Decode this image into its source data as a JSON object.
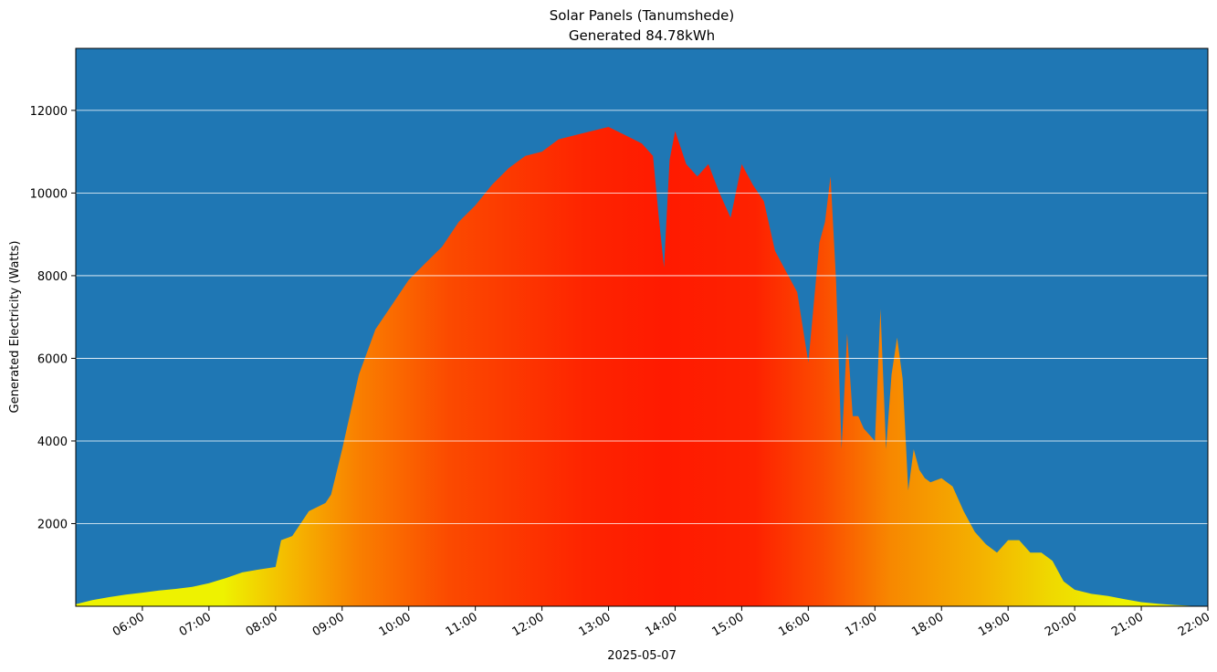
{
  "chart_data": {
    "type": "area",
    "title": "Solar Panels (Tanumshede)",
    "subtitle": "Generated 84.78kWh",
    "xlabel": "2025-05-07",
    "ylabel": "Generated Electricity (Watts)",
    "x_unit": "time of day (2025-05-07)",
    "xlim": [
      "05:00",
      "22:00"
    ],
    "ylim": [
      0,
      13500
    ],
    "x_ticks": [
      "06:00",
      "07:00",
      "08:00",
      "09:00",
      "10:00",
      "11:00",
      "12:00",
      "13:00",
      "14:00",
      "15:00",
      "16:00",
      "17:00",
      "18:00",
      "19:00",
      "20:00",
      "21:00",
      "22:00"
    ],
    "y_ticks": [
      2000,
      4000,
      6000,
      8000,
      10000,
      12000
    ],
    "grid": "horizontal",
    "colors": {
      "background": "#1f77b4",
      "low": "#eef200",
      "mid": "#f7a000",
      "high": "#ff1a00",
      "grid": "#ffffff"
    },
    "series": [
      {
        "x": [
          "05:00",
          "05:15",
          "05:30",
          "05:45",
          "06:00",
          "06:15",
          "06:30",
          "06:45",
          "07:00",
          "07:15",
          "07:30",
          "07:45",
          "08:00",
          "08:05",
          "08:15",
          "08:30",
          "08:45",
          "08:50",
          "09:00",
          "09:15",
          "09:30",
          "09:45",
          "10:00",
          "10:15",
          "10:30",
          "10:45",
          "11:00",
          "11:15",
          "11:30",
          "11:45",
          "12:00",
          "12:15",
          "12:30",
          "12:45",
          "13:00",
          "13:15",
          "13:30",
          "13:40",
          "13:45",
          "13:50",
          "13:55",
          "14:00",
          "14:10",
          "14:20",
          "14:30",
          "14:40",
          "14:50",
          "15:00",
          "15:10",
          "15:20",
          "15:30",
          "15:40",
          "15:50",
          "16:00",
          "16:10",
          "16:15",
          "16:20",
          "16:25",
          "16:30",
          "16:35",
          "16:40",
          "16:45",
          "16:50",
          "17:00",
          "17:05",
          "17:10",
          "17:15",
          "17:20",
          "17:25",
          "17:30",
          "17:35",
          "17:40",
          "17:45",
          "17:50",
          "18:00",
          "18:10",
          "18:20",
          "18:30",
          "18:40",
          "18:50",
          "19:00",
          "19:10",
          "19:20",
          "19:30",
          "19:40",
          "19:50",
          "20:00",
          "20:15",
          "20:30",
          "20:45",
          "21:00",
          "21:15",
          "21:30",
          "21:45",
          "22:00"
        ],
        "y": [
          50,
          150,
          220,
          280,
          330,
          380,
          420,
          470,
          560,
          680,
          820,
          890,
          950,
          1600,
          1700,
          2300,
          2500,
          2700,
          3800,
          5600,
          6700,
          7300,
          7900,
          8300,
          8700,
          9300,
          9700,
          10200,
          10600,
          10900,
          11000,
          11300,
          11400,
          11500,
          11600,
          11400,
          11200,
          10900,
          9500,
          8200,
          10800,
          11500,
          10700,
          10400,
          10700,
          10000,
          9400,
          10700,
          10200,
          9800,
          8600,
          8100,
          7600,
          5900,
          8800,
          9300,
          10400,
          7900,
          3800,
          6600,
          4600,
          4600,
          4300,
          4000,
          7200,
          3800,
          5600,
          6500,
          5500,
          2800,
          3800,
          3300,
          3100,
          3000,
          3100,
          2900,
          2300,
          1800,
          1500,
          1300,
          1600,
          1600,
          1300,
          1300,
          1100,
          600,
          400,
          300,
          250,
          170,
          100,
          60,
          30,
          10,
          10
        ]
      }
    ]
  }
}
